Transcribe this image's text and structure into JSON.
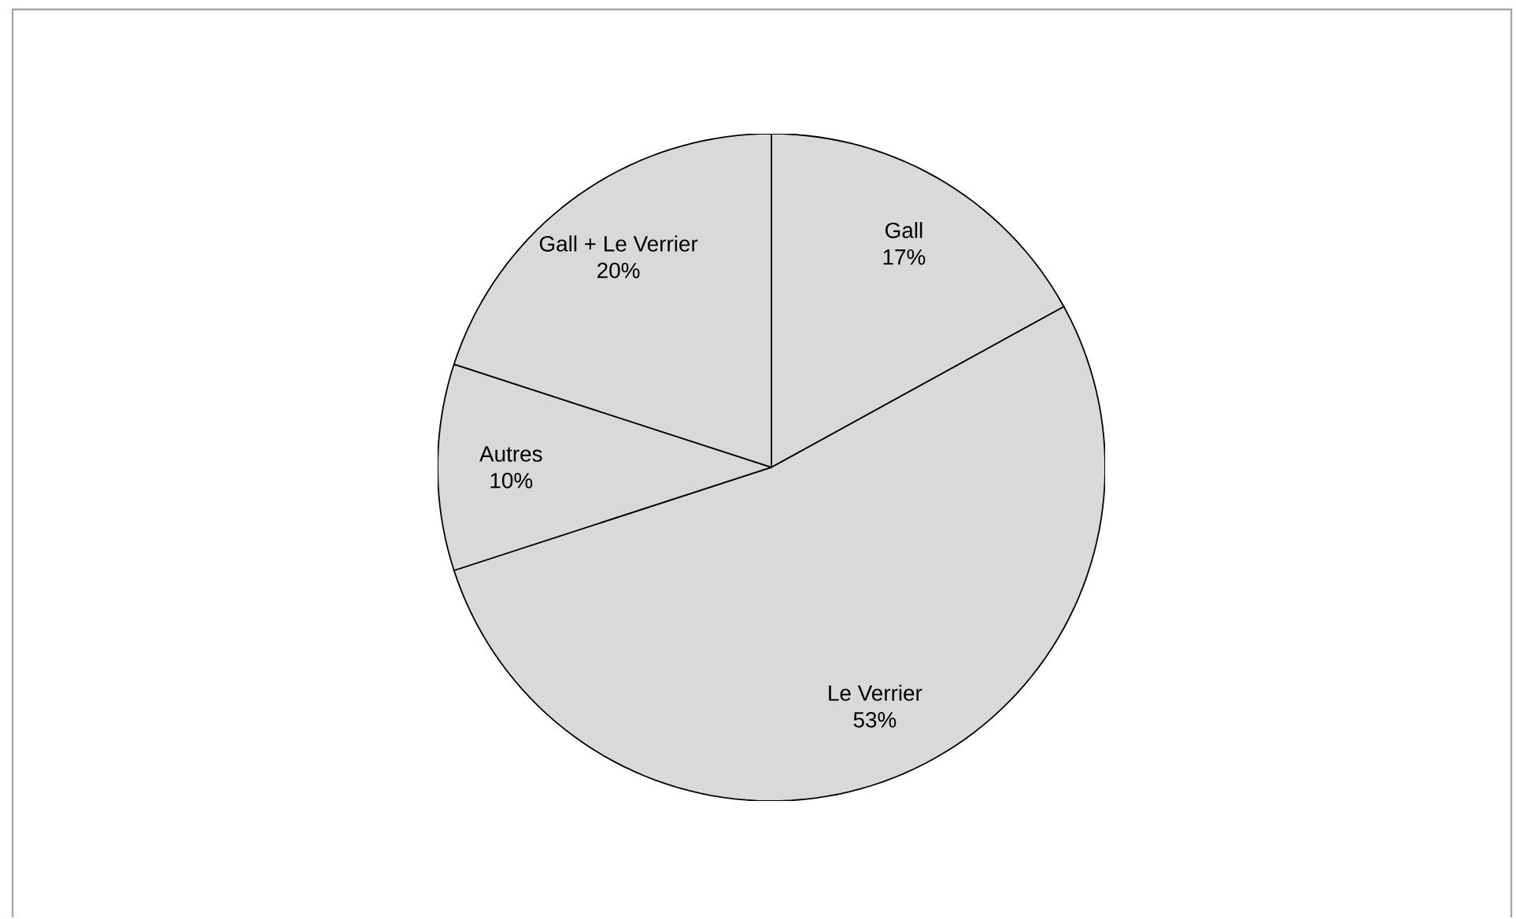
{
  "chart_data": {
    "type": "pie",
    "categories": [
      "Gall",
      "Le Verrier",
      "Autres",
      "Gall + Le Verrier"
    ],
    "values": [
      17,
      53,
      10,
      20
    ],
    "value_labels": [
      "17%",
      "53%",
      "10%",
      "20%"
    ],
    "colors": [
      "#d9d9d9",
      "#d9d9d9",
      "#d9d9d9",
      "#d9d9d9"
    ]
  }
}
